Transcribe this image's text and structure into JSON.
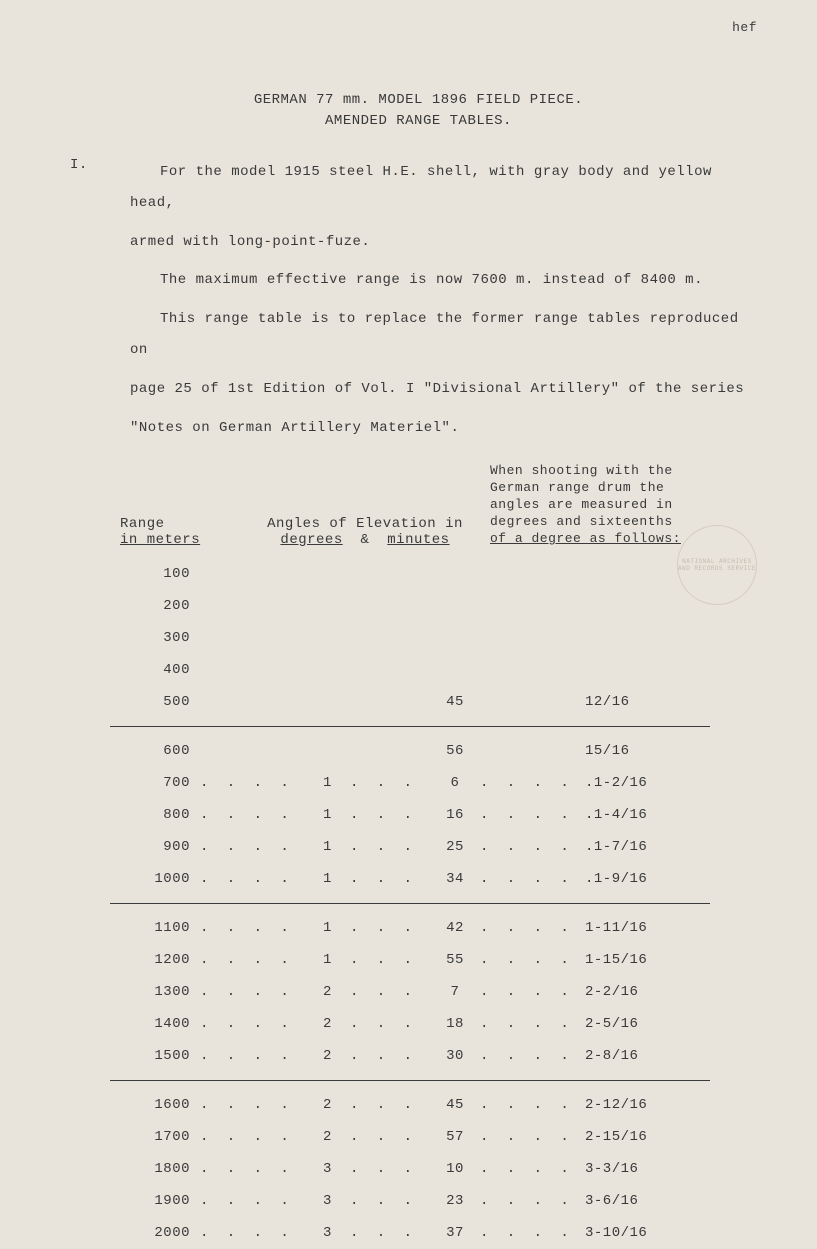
{
  "corner_ref": "hef",
  "title": {
    "line1": "GERMAN 77 mm. MODEL 1896 FIELD PIECE.",
    "line2": "AMENDED RANGE TABLES."
  },
  "section_marker": "I.",
  "paragraphs": {
    "p1": "For the model 1915 steel H.E. shell, with gray body and yellow head,",
    "p1b": "armed with long-point-fuze.",
    "p2": "The maximum effective range is now 7600 m. instead of 8400 m.",
    "p3": "This range table is to replace the former range tables reproduced on",
    "p3b": "page 25 of 1st Edition of Vol. I \"Divisional Artillery\" of the series",
    "p3c": "\"Notes on German Artillery Materiel\"."
  },
  "headers": {
    "range_l1": "Range",
    "range_l2": "in meters",
    "angle_l1": "Angles of Elevation in",
    "angle_l2a": "degrees",
    "angle_l2amp": "&",
    "angle_l2b": "minutes",
    "drum_l1": "When shooting with the",
    "drum_l2": "German range drum the",
    "drum_l3": "angles are measured in",
    "drum_l4": "degrees and sixteenths",
    "drum_l5": "of a degree as follows:"
  },
  "stamp_text": "NATIONAL ARCHIVES AND RECORDS SERVICE",
  "rows": [
    {
      "range": "100",
      "deg": "",
      "min": "",
      "drum": "",
      "dotted": false
    },
    {
      "range": "200",
      "deg": "",
      "min": "",
      "drum": "",
      "dotted": false
    },
    {
      "range": "300",
      "deg": "",
      "min": "",
      "drum": "",
      "dotted": false
    },
    {
      "range": "400",
      "deg": "",
      "min": "",
      "drum": "",
      "dotted": false
    },
    {
      "range": "500",
      "deg": "",
      "min": "45",
      "drum": "12/16",
      "dotted": false
    },
    {
      "divider": true
    },
    {
      "range": "600",
      "deg": "",
      "min": "56",
      "drum": "15/16",
      "dotted": false
    },
    {
      "range": "700",
      "deg": "1",
      "min": "6",
      "drum": ".1-2/16",
      "dotted": true
    },
    {
      "range": "800",
      "deg": "1",
      "min": "16",
      "drum": ".1-4/16",
      "dotted": true
    },
    {
      "range": "900",
      "deg": "1",
      "min": "25",
      "drum": ".1-7/16",
      "dotted": true
    },
    {
      "range": "1000",
      "deg": "1",
      "min": "34",
      "drum": ".1-9/16",
      "dotted": true
    },
    {
      "divider": true
    },
    {
      "range": "1100",
      "deg": "1",
      "min": "42",
      "drum": "1-11/16",
      "dotted": true
    },
    {
      "range": "1200",
      "deg": "1",
      "min": "55",
      "drum": "1-15/16",
      "dotted": true
    },
    {
      "range": "1300",
      "deg": "2",
      "min": "7",
      "drum": "2-2/16",
      "dotted": true
    },
    {
      "range": "1400",
      "deg": "2",
      "min": "18",
      "drum": "2-5/16",
      "dotted": true
    },
    {
      "range": "1500",
      "deg": "2",
      "min": "30",
      "drum": "2-8/16",
      "dotted": true
    },
    {
      "divider": true
    },
    {
      "range": "1600",
      "deg": "2",
      "min": "45",
      "drum": "2-12/16",
      "dotted": true
    },
    {
      "range": "1700",
      "deg": "2",
      "min": "57",
      "drum": "2-15/16",
      "dotted": true
    },
    {
      "range": "1800",
      "deg": "3",
      "min": "10",
      "drum": "3-3/16",
      "dotted": true
    },
    {
      "range": "1900",
      "deg": "3",
      "min": "23",
      "drum": "3-6/16",
      "dotted": true
    },
    {
      "range": "2000",
      "deg": "3",
      "min": "37",
      "drum": "3-10/16",
      "dotted": true
    }
  ],
  "colors": {
    "bg": "#e8e4db",
    "text": "#3a3a3a",
    "stamp": "#8a6a5a"
  }
}
